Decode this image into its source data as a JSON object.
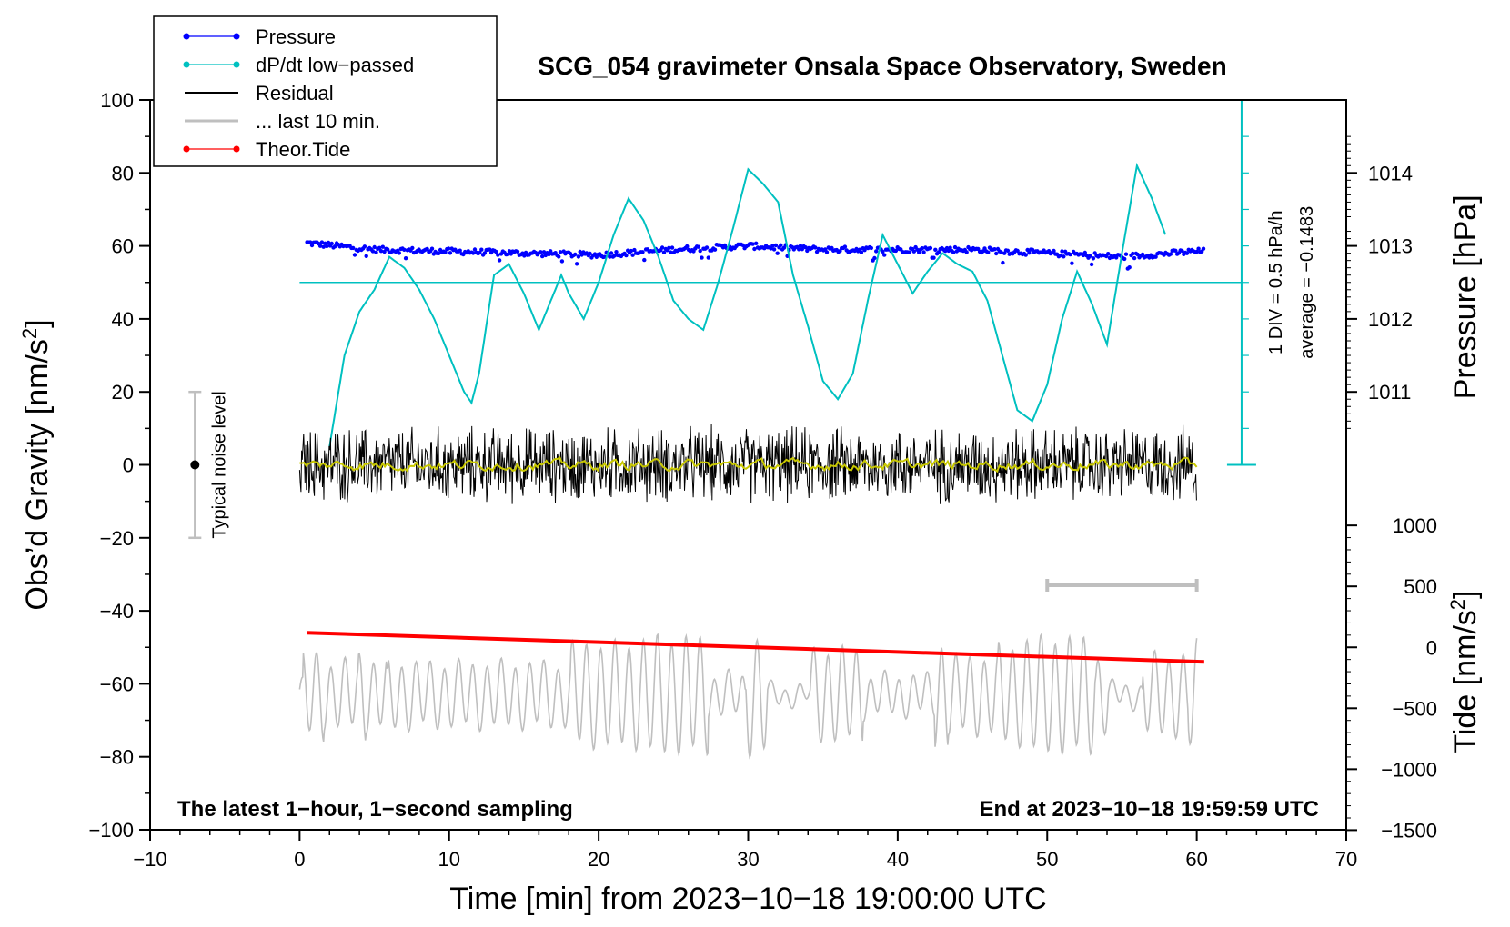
{
  "chart_data": {
    "type": "line",
    "title": "SCG_054 gravimeter Onsala Space Observatory, Sweden",
    "xlabel": "Time [min] from 2023−10−18 19:00:00 UTC",
    "ylabel_left": "Obs’d Gravity [nm/s",
    "ylabel_left_sup": "2",
    "ylabel_left_end": "]",
    "ylabel_pressure": "Pressure [hPa]",
    "ylabel_tide": "Tide [nm/s",
    "ylabel_tide_sup": "2",
    "ylabel_tide_end": "]",
    "xlim": [
      -10,
      70
    ],
    "ylim": [
      -100,
      100
    ],
    "x_ticks": [
      -10,
      0,
      10,
      20,
      30,
      40,
      50,
      60,
      70
    ],
    "x_tick_labels": [
      "−10",
      "0",
      "10",
      "20",
      "30",
      "40",
      "50",
      "60",
      "70"
    ],
    "y_ticks": [
      -100,
      -80,
      -60,
      -40,
      -20,
      0,
      20,
      40,
      60,
      80,
      100
    ],
    "y_tick_labels": [
      "−100",
      "−80",
      "−60",
      "−40",
      "−20",
      "0",
      "20",
      "40",
      "60",
      "80",
      "100"
    ],
    "pressure_ticks": [
      1011,
      1012,
      1013,
      1014
    ],
    "pressure_tick_labels": [
      "1011",
      "1012",
      "1013",
      "1014"
    ],
    "pressure_axis_map": {
      "value_1013": 60,
      "per_hpa": 20
    },
    "tide_ticks": [
      1000,
      500,
      0,
      -500,
      -1000,
      -1500
    ],
    "tide_tick_labels": [
      "1000",
      "500",
      "0",
      "−500",
      "−1000",
      "−1500"
    ],
    "tide_axis_map": {
      "value_0": -50,
      "per_500": 16.7
    },
    "legend": [
      {
        "label": "Pressure",
        "color": "#0000ff",
        "marker": true
      },
      {
        "label": "dP/dt low−passed",
        "color": "#00c0c0",
        "marker": true
      },
      {
        "label": "Residual",
        "color": "#000000",
        "marker": false
      },
      {
        "label": "... last 10 min.",
        "color": "#bfbfbf",
        "marker": false
      },
      {
        "label": "Theor.Tide",
        "color": "#ff0000",
        "marker": true
      }
    ],
    "series": [
      {
        "name": "Pressure",
        "color": "#0000ff",
        "style": "dots",
        "x": [
          0,
          5,
          10,
          15,
          20,
          25,
          30,
          35,
          40,
          45,
          50,
          55,
          60
        ],
        "y": [
          61,
          59,
          58.5,
          58,
          57.5,
          59,
          60,
          59,
          59,
          59,
          58,
          57,
          58.5
        ]
      },
      {
        "name": "dP/dt low−passed",
        "color": "#00c0c0",
        "style": "line",
        "x": [
          2,
          3,
          4,
          5,
          6,
          7,
          8,
          9,
          10,
          11,
          11.5,
          12,
          13,
          14,
          15,
          16,
          17,
          17.5,
          18,
          19,
          20,
          21,
          22,
          23,
          24,
          25,
          26,
          27,
          28,
          29,
          30,
          31,
          32,
          33,
          34,
          35,
          36,
          37,
          38,
          39,
          40,
          41,
          42,
          43,
          44,
          45,
          46,
          47,
          48,
          49,
          50,
          51,
          52,
          53,
          54,
          55,
          56,
          57,
          58
        ],
        "y": [
          5,
          30,
          42,
          48,
          57,
          54,
          48,
          40,
          30,
          20,
          17,
          25,
          52,
          55,
          47,
          37,
          47,
          52,
          47,
          40,
          50,
          63,
          73,
          67,
          57,
          45,
          40,
          37,
          50,
          65,
          81,
          77,
          72,
          52,
          38,
          23,
          18,
          25,
          45,
          63,
          55,
          47,
          53,
          58,
          55,
          53,
          45,
          30,
          15,
          12,
          22,
          40,
          53,
          44,
          33,
          58,
          82,
          73,
          62
        ]
      },
      {
        "name": "Residual",
        "color": "#000000",
        "style": "noise",
        "x_range": [
          0,
          60
        ],
        "amplitude": 10,
        "center": 0
      },
      {
        "name": "Residual (smoothed)",
        "color": "#c8c800",
        "style": "noise",
        "x_range": [
          0,
          60
        ],
        "amplitude": 1.5,
        "center": 0
      },
      {
        "name": "... last 10 min.",
        "color": "#bfbfbf",
        "style": "wave",
        "x_range": [
          0,
          60
        ],
        "amplitude": 10,
        "center": -63
      },
      {
        "name": "Theor.Tide",
        "color": "#ff0000",
        "style": "line",
        "x": [
          0.5,
          60.5
        ],
        "y": [
          -46,
          -54
        ]
      }
    ],
    "reference_line": {
      "name": "average",
      "y": 50,
      "color": "#00c0c0"
    },
    "scale_bar_pressure": {
      "x": 63,
      "y_from": 0,
      "y_to": 100,
      "label_div": "1 DIV = 0.5 hPa/h",
      "label_avg": "average = −0.1483"
    },
    "noise_bar": {
      "x": -7,
      "y_from": -20,
      "y_to": 20,
      "label": "Typical noise level"
    },
    "last10_bar": {
      "x_from": 50,
      "x_to": 60,
      "y": -33
    },
    "annotation_left": "The latest 1−hour, 1−second sampling",
    "annotation_right": "End at 2023−10−18 19:59:59 UTC"
  }
}
